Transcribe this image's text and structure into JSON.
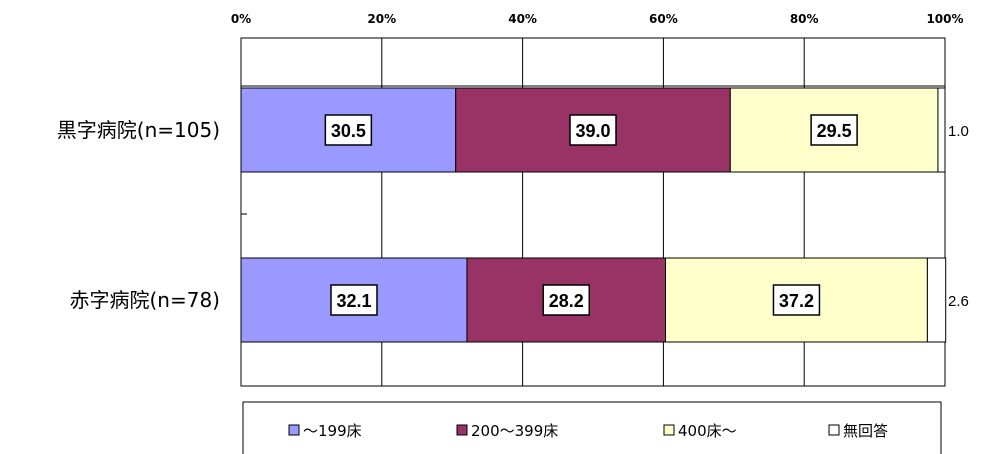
{
  "chart_data": {
    "type": "bar",
    "orientation": "horizontal",
    "stacked": true,
    "percent": true,
    "categories": [
      "黒字病院(n=105)",
      "赤字病院(n=78)"
    ],
    "series": [
      {
        "name": "～199床",
        "values": [
          30.5,
          32.1
        ],
        "color": "#9999ff"
      },
      {
        "name": "200～399床",
        "values": [
          39.0,
          28.2
        ],
        "color": "#993366"
      },
      {
        "name": "400床～",
        "values": [
          29.5,
          37.2
        ],
        "color": "#ffffcc"
      },
      {
        "name": "無回答",
        "values": [
          1.0,
          2.6
        ],
        "color": "#ffffff"
      }
    ],
    "value_labels": [
      [
        "30.5",
        "39.0",
        "29.5",
        "1.0"
      ],
      [
        "32.1",
        "28.2",
        "37.2",
        "2.6"
      ]
    ],
    "xticks": [
      "0%",
      "20%",
      "40%",
      "60%",
      "80%",
      "100%"
    ],
    "xlim": [
      0,
      100
    ],
    "grid": true,
    "legend": "bottom"
  }
}
